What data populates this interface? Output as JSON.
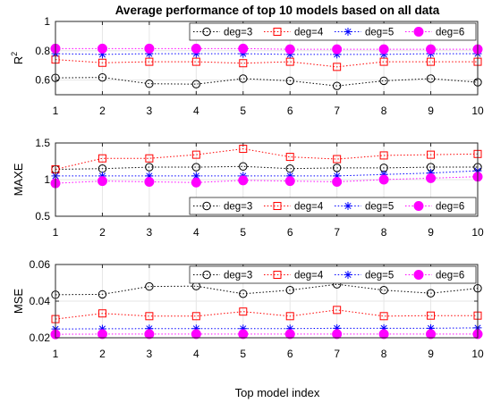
{
  "chart_data": {
    "type": "line",
    "title": "Average performance of top 10 models based on all data",
    "xlabel": "Top model index",
    "x": [
      1,
      2,
      3,
      4,
      5,
      6,
      7,
      8,
      9,
      10
    ],
    "x_ticks": [
      "1",
      "2",
      "3",
      "4",
      "5",
      "6",
      "7",
      "8",
      "9",
      "10"
    ],
    "grid": true,
    "legend": [
      "deg=3",
      "deg=4",
      "deg=5",
      "deg=6"
    ],
    "series_styles": [
      {
        "name": "deg=3",
        "color": "#000000",
        "marker": "circle-open"
      },
      {
        "name": "deg=4",
        "color": "#ff0000",
        "marker": "square-open"
      },
      {
        "name": "deg=5",
        "color": "#0000ff",
        "marker": "asterisk"
      },
      {
        "name": "deg=6",
        "color": "#ff00ff",
        "marker": "circle-filled"
      }
    ],
    "panels": [
      {
        "ylabel": "R",
        "ylabel_superscript": "2",
        "ylim": [
          0.5,
          1.0
        ],
        "y_ticks": [
          "0.6",
          "0.8",
          "1"
        ],
        "y_tick_values": [
          0.6,
          0.8,
          1.0
        ],
        "legend_position": "top",
        "series": [
          {
            "name": "deg=3",
            "values": [
              0.615,
              0.618,
              0.575,
              0.572,
              0.61,
              0.595,
              0.56,
              0.595,
              0.61,
              0.585
            ]
          },
          {
            "name": "deg=4",
            "values": [
              0.74,
              0.718,
              0.725,
              0.725,
              0.715,
              0.725,
              0.69,
              0.725,
              0.725,
              0.725
            ]
          },
          {
            "name": "deg=5",
            "values": [
              0.78,
              0.775,
              0.78,
              0.78,
              0.78,
              0.775,
              0.775,
              0.775,
              0.78,
              0.78
            ]
          },
          {
            "name": "deg=6",
            "values": [
              0.815,
              0.815,
              0.815,
              0.815,
              0.815,
              0.81,
              0.81,
              0.81,
              0.81,
              0.81
            ]
          }
        ]
      },
      {
        "ylabel": "MAXE",
        "ylim": [
          0.5,
          1.5
        ],
        "y_ticks": [
          "0.5",
          "1",
          "1.5"
        ],
        "y_tick_values": [
          0.5,
          1.0,
          1.5
        ],
        "legend_position": "bottom",
        "series": [
          {
            "name": "deg=3",
            "values": [
              1.14,
              1.15,
              1.17,
              1.17,
              1.18,
              1.15,
              1.16,
              1.16,
              1.17,
              1.17
            ]
          },
          {
            "name": "deg=4",
            "values": [
              1.14,
              1.29,
              1.29,
              1.34,
              1.42,
              1.31,
              1.28,
              1.33,
              1.34,
              1.35
            ]
          },
          {
            "name": "deg=5",
            "values": [
              1.05,
              1.05,
              1.05,
              1.05,
              1.05,
              1.05,
              1.05,
              1.07,
              1.09,
              1.12
            ]
          },
          {
            "name": "deg=6",
            "values": [
              0.95,
              0.98,
              0.97,
              0.96,
              0.99,
              0.98,
              0.97,
              1.0,
              1.02,
              1.04
            ]
          }
        ]
      },
      {
        "ylabel": "MSE",
        "ylim": [
          0.02,
          0.06
        ],
        "y_ticks": [
          "0.02",
          "0.04",
          "0.06"
        ],
        "y_tick_values": [
          0.02,
          0.04,
          0.06
        ],
        "legend_position": "top",
        "series": [
          {
            "name": "deg=3",
            "values": [
              0.0435,
              0.0437,
              0.048,
              0.0482,
              0.044,
              0.046,
              0.0492,
              0.046,
              0.0443,
              0.047
            ]
          },
          {
            "name": "deg=4",
            "values": [
              0.0302,
              0.0333,
              0.0318,
              0.0318,
              0.0343,
              0.0318,
              0.0352,
              0.0318,
              0.0321,
              0.0321
            ]
          },
          {
            "name": "deg=5",
            "values": [
              0.0248,
              0.0249,
              0.025,
              0.025,
              0.025,
              0.025,
              0.0252,
              0.0252,
              0.0252,
              0.0254
            ]
          },
          {
            "name": "deg=6",
            "values": [
              0.0219,
              0.022,
              0.022,
              0.022,
              0.022,
              0.022,
              0.022,
              0.022,
              0.022,
              0.022
            ]
          }
        ]
      }
    ]
  }
}
